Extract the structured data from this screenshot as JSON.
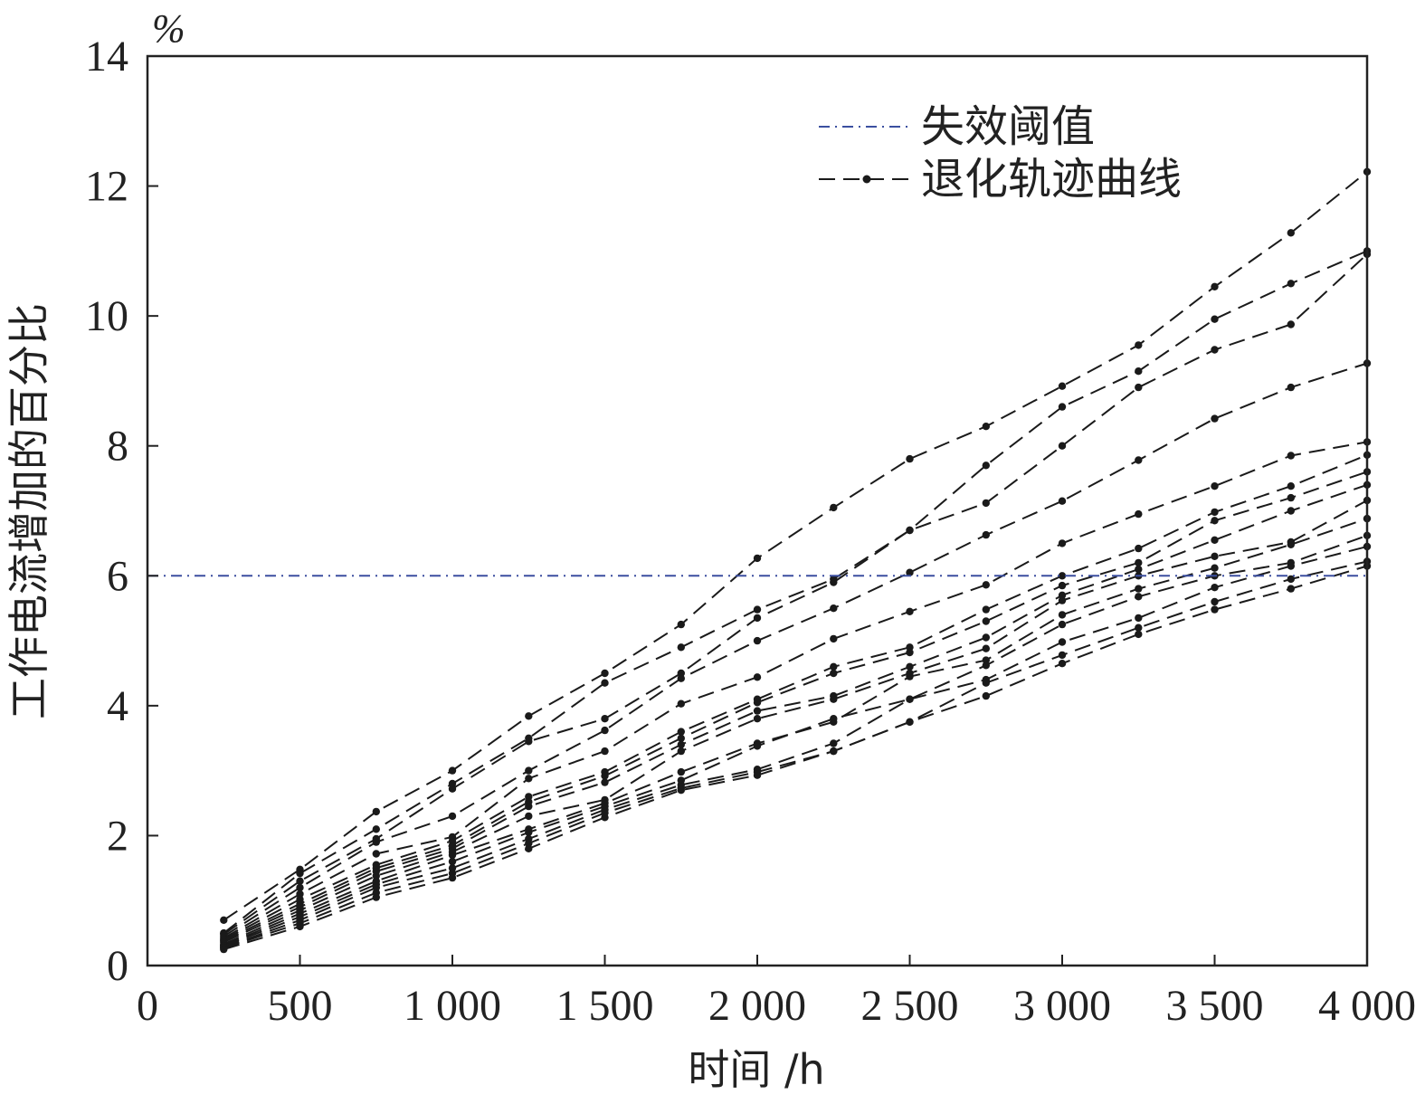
{
  "chart_data": {
    "type": "line",
    "ylabel": "工作电流增加的百分比",
    "xlabel": "时间 /h",
    "yunit": "%",
    "xlim": [
      0,
      4000
    ],
    "ylim": [
      0,
      14
    ],
    "x_ticks": [
      0,
      500,
      1000,
      1500,
      2000,
      2500,
      3000,
      3500,
      4000
    ],
    "x_tick_labels": [
      "0",
      "500",
      "1 000",
      "1 500",
      "2 000",
      "2 500",
      "3 000",
      "3 500",
      "4 000"
    ],
    "y_ticks": [
      0,
      2,
      4,
      6,
      8,
      10,
      12,
      14
    ],
    "y_tick_labels": [
      "0",
      "2",
      "4",
      "6",
      "8",
      "10",
      "12",
      "14"
    ],
    "grid": false,
    "legend_position": "top-right",
    "legend": [
      "失效阈值",
      "退化轨迹曲线"
    ],
    "threshold": {
      "name": "失效阈值",
      "y": 6.0,
      "color": "#3b4fa0"
    },
    "curve_color": "#1a1a1a",
    "x": [
      250,
      500,
      750,
      1000,
      1250,
      1500,
      1750,
      2000,
      2250,
      2500,
      2750,
      3000,
      3250,
      3500,
      3750,
      4000
    ],
    "series": [
      {
        "values": [
          0.7,
          1.48,
          2.37,
          3.0,
          3.84,
          4.5,
          5.25,
          6.27,
          7.05,
          7.8,
          8.3,
          8.92,
          9.55,
          10.45,
          11.28,
          12.22
        ]
      },
      {
        "values": [
          0.5,
          1.42,
          2.1,
          2.8,
          3.5,
          4.35,
          4.9,
          5.48,
          5.95,
          6.7,
          7.7,
          8.6,
          9.15,
          9.95,
          10.5,
          11.0
        ]
      },
      {
        "values": [
          0.48,
          1.3,
          1.95,
          2.72,
          3.45,
          3.8,
          4.5,
          5.35,
          5.9,
          6.7,
          7.12,
          8.0,
          8.9,
          9.48,
          9.87,
          10.95
        ]
      },
      {
        "values": [
          0.45,
          1.2,
          1.9,
          2.3,
          3.0,
          3.62,
          4.42,
          5.0,
          5.5,
          6.05,
          6.63,
          7.15,
          7.78,
          8.42,
          8.9,
          9.27
        ]
      },
      {
        "values": [
          0.42,
          1.1,
          1.72,
          1.98,
          2.88,
          3.3,
          4.03,
          4.44,
          5.03,
          5.45,
          5.86,
          6.5,
          6.95,
          7.38,
          7.85,
          8.06
        ]
      },
      {
        "values": [
          0.4,
          1.02,
          1.55,
          1.92,
          2.6,
          2.98,
          3.6,
          4.1,
          4.6,
          4.9,
          5.48,
          6.0,
          6.42,
          6.98,
          7.38,
          7.86
        ]
      },
      {
        "values": [
          0.38,
          0.95,
          1.5,
          1.85,
          2.52,
          2.92,
          3.5,
          4.05,
          4.5,
          4.82,
          5.3,
          5.85,
          6.2,
          6.85,
          7.2,
          7.6
        ]
      },
      {
        "values": [
          0.36,
          0.9,
          1.45,
          1.8,
          2.45,
          2.82,
          3.4,
          3.92,
          4.15,
          4.6,
          5.05,
          5.7,
          6.1,
          6.55,
          7.0,
          7.4
        ]
      },
      {
        "values": [
          0.33,
          0.85,
          1.38,
          1.75,
          2.3,
          2.55,
          3.3,
          3.8,
          4.1,
          4.5,
          4.88,
          5.62,
          6.0,
          6.3,
          6.52,
          7.16
        ]
      },
      {
        "values": [
          0.31,
          0.8,
          1.3,
          1.7,
          2.1,
          2.5,
          2.98,
          3.42,
          3.75,
          4.45,
          4.7,
          5.4,
          5.8,
          6.12,
          6.48,
          6.88
        ]
      },
      {
        "values": [
          0.3,
          0.75,
          1.25,
          1.6,
          2.05,
          2.45,
          2.85,
          3.38,
          3.8,
          4.1,
          4.62,
          5.25,
          5.68,
          6.0,
          6.2,
          6.62
        ]
      },
      {
        "values": [
          0.28,
          0.7,
          1.2,
          1.5,
          1.95,
          2.4,
          2.78,
          3.02,
          3.42,
          4.1,
          4.4,
          4.98,
          5.35,
          5.82,
          6.15,
          6.45
        ]
      },
      {
        "values": [
          0.27,
          0.65,
          1.12,
          1.42,
          1.88,
          2.35,
          2.73,
          2.98,
          3.3,
          3.75,
          4.35,
          4.78,
          5.2,
          5.6,
          5.95,
          6.22
        ]
      },
      {
        "values": [
          0.25,
          0.6,
          1.05,
          1.35,
          1.8,
          2.28,
          2.7,
          2.93,
          3.3,
          3.75,
          4.15,
          4.65,
          5.1,
          5.48,
          5.8,
          6.15
        ]
      }
    ]
  }
}
